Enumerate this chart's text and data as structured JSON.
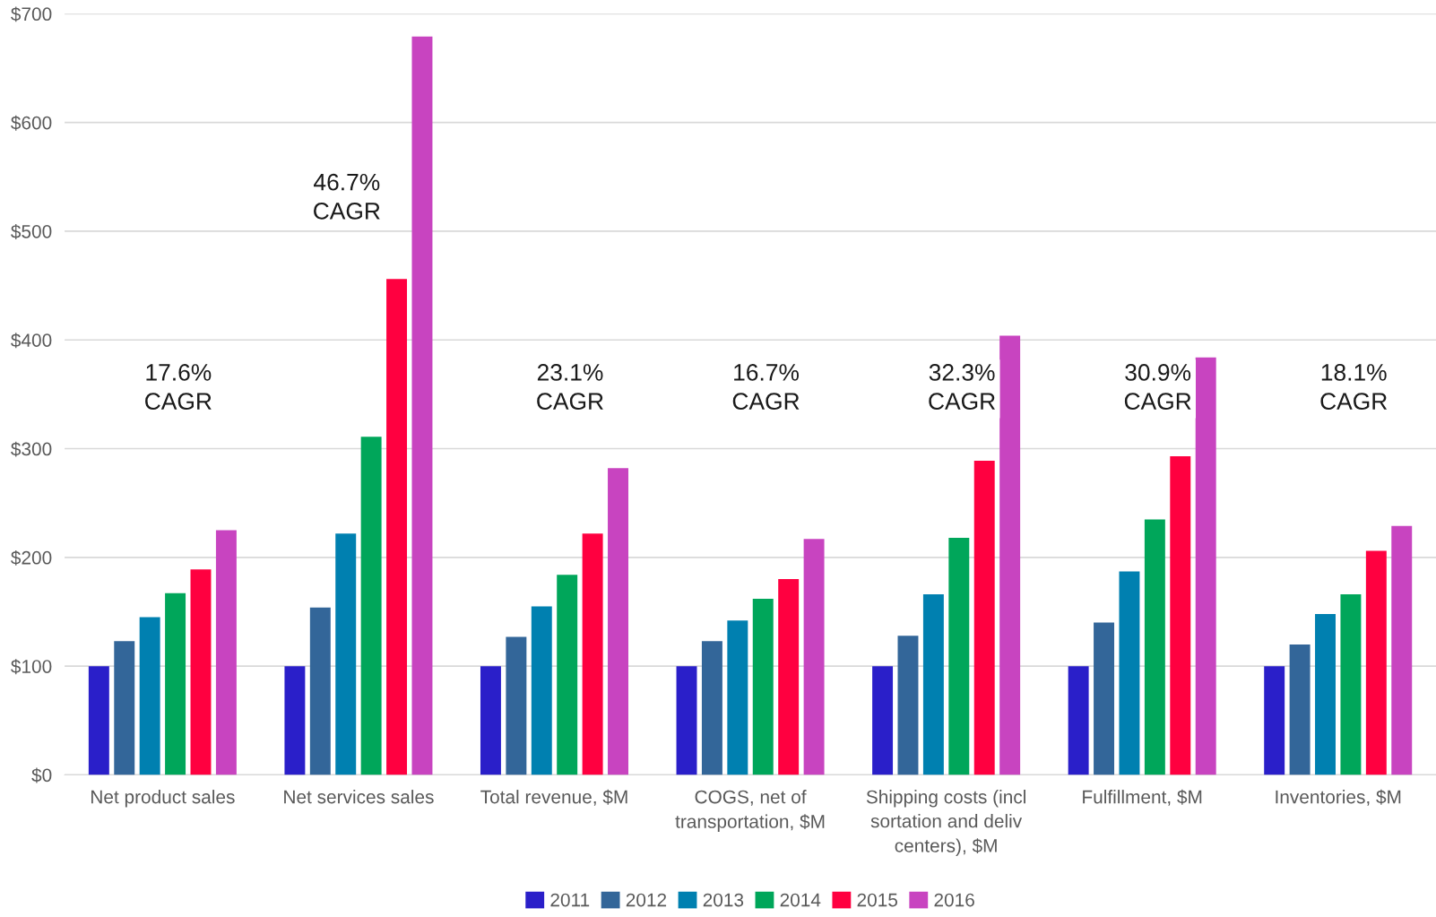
{
  "chart_data": {
    "type": "bar",
    "categories": [
      "Net product sales",
      "Net services sales",
      "Total revenue, $M",
      "COGS, net of\ntransportation, $M",
      "Shipping costs (incl\nsortation and deliv\ncenters), $M",
      "Fulfillment, $M",
      "Inventories, $M"
    ],
    "series": [
      {
        "name": "2011",
        "color": "#2a1fc9",
        "values": [
          100,
          100,
          100,
          100,
          100,
          100,
          100
        ]
      },
      {
        "name": "2012",
        "color": "#336699",
        "values": [
          123,
          154,
          127,
          123,
          128,
          140,
          120
        ]
      },
      {
        "name": "2013",
        "color": "#0080b0",
        "values": [
          145,
          222,
          155,
          142,
          166,
          187,
          148
        ]
      },
      {
        "name": "2014",
        "color": "#00a65a",
        "values": [
          167,
          311,
          184,
          162,
          218,
          235,
          166
        ]
      },
      {
        "name": "2015",
        "color": "#ff0040",
        "values": [
          189,
          456,
          222,
          180,
          289,
          293,
          206
        ]
      },
      {
        "name": "2016",
        "color": "#c844c0",
        "values": [
          225,
          679,
          282,
          217,
          404,
          384,
          229
        ]
      }
    ],
    "ylim": [
      0,
      700
    ],
    "yticks": [
      {
        "value": 0,
        "label": "$0"
      },
      {
        "value": 100,
        "label": "$100"
      },
      {
        "value": 200,
        "label": "$200"
      },
      {
        "value": 300,
        "label": "$300"
      },
      {
        "value": 400,
        "label": "$400"
      },
      {
        "value": 500,
        "label": "$500"
      },
      {
        "value": 600,
        "label": "$600"
      },
      {
        "value": 700,
        "label": "$700"
      }
    ],
    "grid": "y",
    "legend": "bottom",
    "annotations": [
      "17.6%\nCAGR",
      "46.7%\nCAGR",
      "23.1%\nCAGR",
      "16.7%\nCAGR",
      "32.3%\nCAGR",
      "30.9%\nCAGR",
      "18.1%\nCAGR"
    ]
  }
}
